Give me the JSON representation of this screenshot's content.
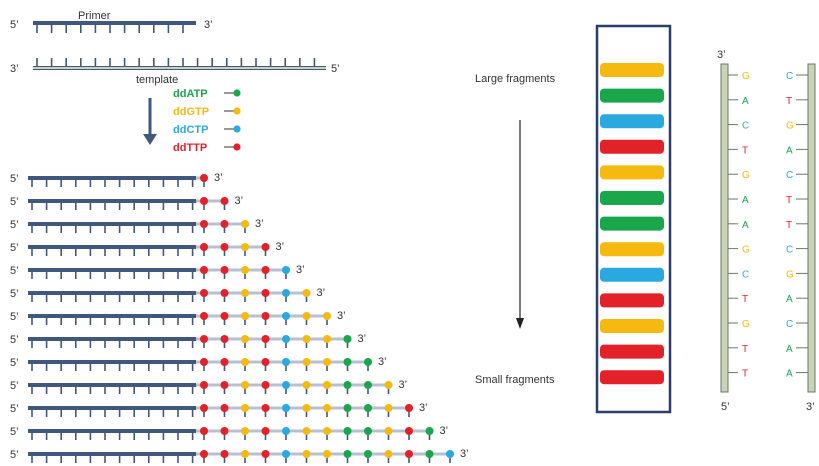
{
  "labels": {
    "primer": "Primer",
    "template": "template",
    "five_prime": "5’",
    "three_prime": "3’",
    "large_fragments": "Large fragments",
    "small_fragments": "Small fragments"
  },
  "legend": [
    {
      "label": "ddATP",
      "color": "#1aa64b"
    },
    {
      "label": "ddGTP",
      "color": "#f5b90f"
    },
    {
      "label": "ddCTP",
      "color": "#2aa9e0"
    },
    {
      "label": "ddTTP",
      "color": "#e32128"
    }
  ],
  "colors": {
    "A": "#1aa64b",
    "G": "#f5b90f",
    "C": "#2aa9e0",
    "T": "#e32128",
    "strand": "#40587e",
    "backbone": "#c8d3b8",
    "extension_line": "#b8bfd0",
    "gel_border": "#2b3d6b"
  },
  "fragment_sequence": [
    "T",
    "T",
    "G",
    "T",
    "C",
    "G",
    "G",
    "A",
    "A",
    "G",
    "T",
    "A",
    "C"
  ],
  "gel_bands": [
    "G",
    "A",
    "C",
    "T",
    "G",
    "A",
    "A",
    "G",
    "C",
    "T",
    "G",
    "T",
    "T"
  ],
  "strand_left": [
    "G",
    "A",
    "C",
    "T",
    "G",
    "A",
    "A",
    "G",
    "C",
    "T",
    "G",
    "T",
    "T"
  ],
  "strand_right": [
    "C",
    "T",
    "G",
    "A",
    "C",
    "T",
    "T",
    "C",
    "G",
    "A",
    "C",
    "A",
    "A"
  ]
}
